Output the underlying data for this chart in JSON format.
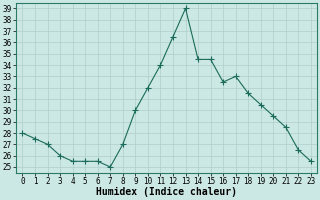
{
  "x": [
    0,
    1,
    2,
    3,
    4,
    5,
    6,
    7,
    8,
    9,
    10,
    11,
    12,
    13,
    14,
    15,
    16,
    17,
    18,
    19,
    20,
    21,
    22,
    23
  ],
  "y": [
    28,
    27.5,
    27,
    26,
    25.5,
    25.5,
    25.5,
    25,
    27,
    30,
    32,
    34,
    36.5,
    39,
    34.5,
    34.5,
    32.5,
    33,
    31.5,
    30.5,
    29.5,
    28.5,
    26.5,
    25.5
  ],
  "line_color": "#1a6b5a",
  "marker": "+",
  "marker_size": 4,
  "bg_color": "#cce8e4",
  "grid_color": "#b0ceca",
  "xlabel": "Humidex (Indice chaleur)",
  "xlim": [
    -0.5,
    23.5
  ],
  "ylim": [
    24.5,
    39.5
  ],
  "ytick_min": 25,
  "ytick_max": 39,
  "xlabel_fontsize": 7,
  "tick_fontsize": 5.5
}
